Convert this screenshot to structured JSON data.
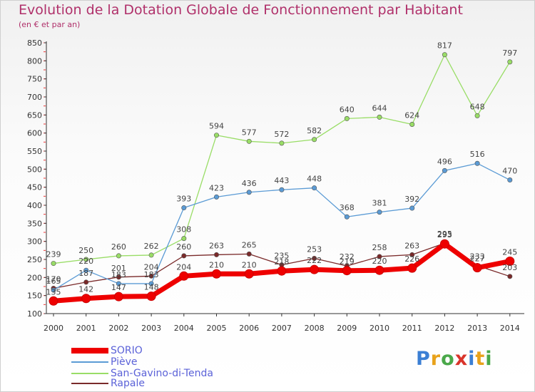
{
  "title": "Evolution de la Dotation Globale de Fonctionnement par Habitant",
  "subtitle": "(en € et par an)",
  "logo": "Proxiti",
  "chart_data": {
    "type": "line",
    "x": [
      "2000",
      "2001",
      "2002",
      "2003",
      "2004",
      "2005",
      "2006",
      "2007",
      "2008",
      "2009",
      "2010",
      "2011",
      "2012",
      "2013",
      "2014"
    ],
    "ylim": [
      100,
      850
    ],
    "yticks": [
      100,
      150,
      200,
      250,
      300,
      350,
      400,
      450,
      500,
      550,
      600,
      650,
      700,
      750,
      800,
      850
    ],
    "grid": false,
    "legend_position": "bottom-left",
    "series": [
      {
        "name": "SORIO",
        "color": "#ee0000",
        "values": [
          135,
          142,
          147,
          148,
          204,
          210,
          210,
          218,
          222,
          219,
          220,
          226,
          293,
          227,
          245
        ]
      },
      {
        "name": "Piève",
        "color": "#5b9bd5",
        "values": [
          165,
          220,
          183,
          183,
          393,
          423,
          436,
          443,
          448,
          368,
          381,
          392,
          496,
          516,
          470
        ]
      },
      {
        "name": "San-Gavino-di-Tenda",
        "color": "#99dd66",
        "values": [
          239,
          250,
          260,
          262,
          308,
          594,
          577,
          572,
          582,
          640,
          644,
          624,
          817,
          648,
          797
        ]
      },
      {
        "name": "Rapale",
        "color": "#7a2a2a",
        "values": [
          170,
          187,
          201,
          204,
          260,
          263,
          265,
          235,
          253,
          232,
          258,
          263,
          295,
          233,
          203
        ]
      }
    ]
  }
}
